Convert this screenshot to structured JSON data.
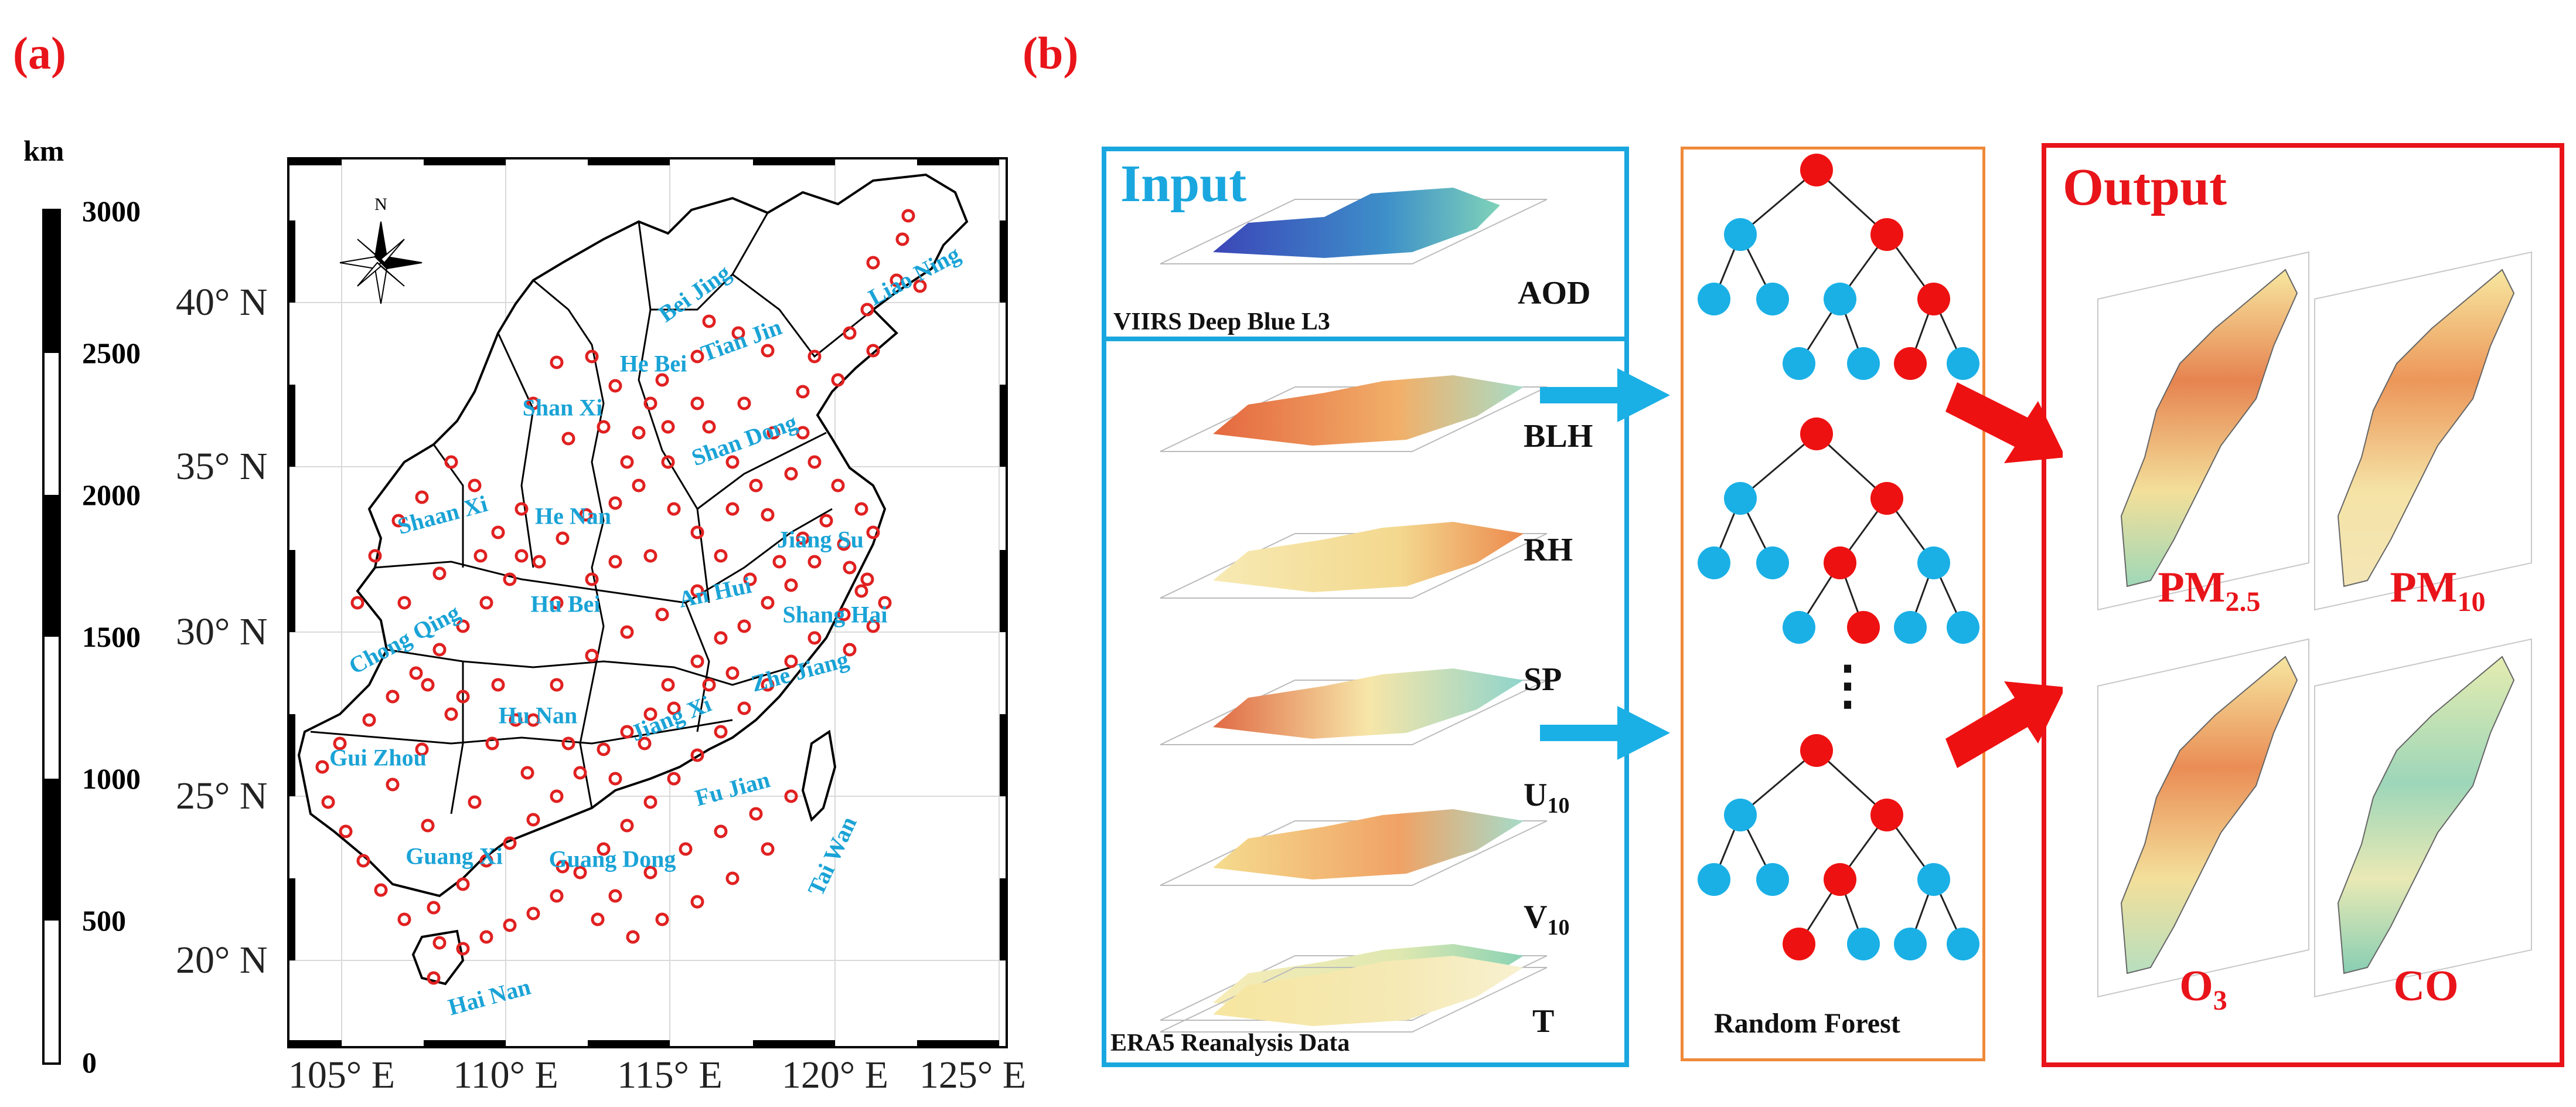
{
  "panels": {
    "a": "(a)",
    "b": "(b)"
  },
  "scale_bar": {
    "unit": "km",
    "ticks": [
      "3000",
      "2500",
      "2000",
      "1500",
      "1000",
      "500",
      "0"
    ]
  },
  "map": {
    "lat_labels": [
      "40° N",
      "35° N",
      "30° N",
      "25° N",
      "20° N"
    ],
    "lon_labels": [
      "105° E",
      "110° E",
      "115° E",
      "120° E",
      "125° E"
    ],
    "compass": "N",
    "provinces": [
      "Liao Ning",
      "Bei Jing",
      "Tian Jin",
      "He Bei",
      "Shan Xi",
      "Shan Dong",
      "Shaan Xi",
      "He Nan",
      "Jiang Su",
      "An Hui",
      "Shang Hai",
      "Hu Bei",
      "Chong Qing",
      "Zhe Jiang",
      "Hu Nan",
      "Jiang Xi",
      "Gui Zhou",
      "Fu Jian",
      "Guang Xi",
      "Guang Dong",
      "Tai Wan",
      "Hai Nan"
    ],
    "station_color": "#e02020",
    "label_color": "#1aa3d6"
  },
  "diagram": {
    "input_title": "Input",
    "satellite_caption": "VIIRS  Deep  Blue  L3",
    "satellite_var": "AOD",
    "reanalysis_caption": "ERA5  Reanalysis  Data",
    "reanalysis_vars": [
      {
        "main": "BLH",
        "sub": ""
      },
      {
        "main": "RH",
        "sub": ""
      },
      {
        "main": "SP",
        "sub": ""
      },
      {
        "main": "U",
        "sub": "10"
      },
      {
        "main": "V",
        "sub": "10"
      },
      {
        "main": "T",
        "sub": ""
      }
    ],
    "model_caption": "Random  Forest",
    "ellipsis": "⋮",
    "output_title": "Output",
    "outputs": [
      {
        "main": "PM",
        "sub": "2.5"
      },
      {
        "main": "PM",
        "sub": "10"
      },
      {
        "main": "O",
        "sub": "3"
      },
      {
        "main": "CO",
        "sub": ""
      }
    ],
    "colors": {
      "input_border": "#1aa7df",
      "model_border": "#ef8a3a",
      "output_border": "#e8141a",
      "node_red": "#ee1111",
      "node_blue": "#1ab0e6",
      "arrow_blue": "#1ab0e6",
      "arrow_red": "#ee1111"
    }
  }
}
